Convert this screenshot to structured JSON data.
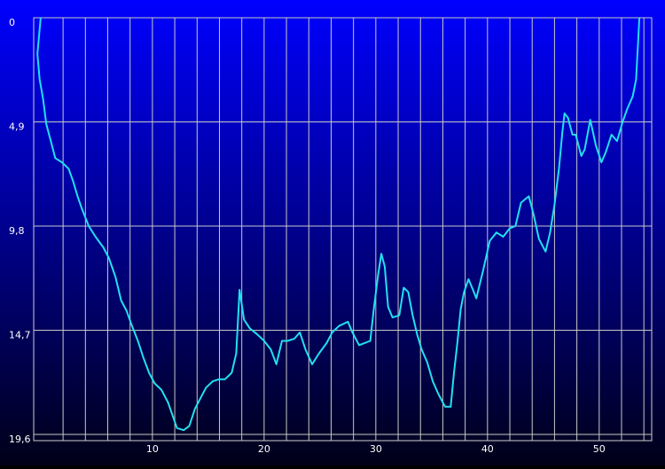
{
  "chart_data": {
    "type": "line",
    "x": [
      0,
      -0.3,
      -0.1,
      0.2,
      0.5,
      0.9,
      1.3,
      1.9,
      2.5,
      2.9,
      3.3,
      3.7,
      4.3,
      4.9,
      5.6,
      6.1,
      6.7,
      7.2,
      7.7,
      8.1,
      8.7,
      9.2,
      9.7,
      10.2,
      10.8,
      11.4,
      11.8,
      12.2,
      12.8,
      13.3,
      13.8,
      14.4,
      14.8,
      15.4,
      16.0,
      16.5,
      17.1,
      17.5,
      17.8,
      18.2,
      18.7,
      19.4,
      20.0,
      20.6,
      21.1,
      21.6,
      22.1,
      22.7,
      23.2,
      23.7,
      24.3,
      24.9,
      25.6,
      26.1,
      26.7,
      27.5,
      27.9,
      28.5,
      29.0,
      29.5,
      29.8,
      30.2,
      30.5,
      30.8,
      31.1,
      31.5,
      32.1,
      32.5,
      32.9,
      33.3,
      33.7,
      34.1,
      34.6,
      35.1,
      35.6,
      36.2,
      36.7,
      37.0,
      37.3,
      37.6,
      37.9,
      38.3,
      38.7,
      39.0,
      39.6,
      40.2,
      40.8,
      41.4,
      42.0,
      42.5,
      43.0,
      43.7,
      44.1,
      44.6,
      45.2,
      45.6,
      46.0,
      46.4,
      46.7,
      46.9,
      47.2,
      47.6,
      47.9,
      48.4,
      48.7,
      49.2,
      49.7,
      50.2,
      50.6,
      51.1,
      51.6,
      52.1,
      52.5,
      53.0,
      53.3,
      53.6
    ],
    "series": [
      {
        "color": "#22e0f0",
        "values": [
          0,
          1.7,
          2.9,
          3.8,
          5.0,
          5.8,
          6.6,
          6.8,
          7.1,
          7.7,
          8.4,
          9.0,
          9.8,
          10.3,
          10.8,
          11.3,
          12.2,
          13.3,
          13.8,
          14.4,
          15.2,
          16.0,
          16.7,
          17.2,
          17.5,
          18.1,
          18.7,
          19.3,
          19.4,
          19.2,
          18.4,
          17.8,
          17.4,
          17.1,
          17.0,
          17.0,
          16.7,
          15.8,
          12.8,
          14.2,
          14.6,
          14.9,
          15.2,
          15.6,
          16.3,
          15.2,
          15.2,
          15.1,
          14.8,
          15.6,
          16.3,
          15.8,
          15.3,
          14.8,
          14.5,
          14.3,
          14.8,
          15.4,
          15.3,
          15.2,
          13.8,
          12.1,
          11.1,
          11.7,
          13.6,
          14.1,
          14.0,
          12.7,
          12.9,
          14.0,
          14.9,
          15.6,
          16.2,
          17.1,
          17.7,
          18.3,
          18.3,
          16.7,
          15.3,
          13.7,
          12.9,
          12.3,
          12.8,
          13.2,
          11.9,
          10.5,
          10.1,
          10.3,
          9.9,
          9.8,
          8.7,
          8.4,
          9.2,
          10.4,
          11.0,
          10.1,
          8.8,
          7.1,
          5.4,
          4.5,
          4.7,
          5.5,
          5.5,
          6.5,
          6.2,
          4.8,
          6.0,
          6.8,
          6.3,
          5.5,
          5.8,
          4.9,
          4.3,
          3.7,
          2.9,
          0
        ]
      }
    ],
    "xlim": [
      -0.63,
      54.7
    ],
    "ylim": [
      0,
      19.6
    ],
    "y_inverted": true,
    "xticks": [
      10,
      20,
      30,
      40,
      50
    ],
    "xgrid": [
      2,
      4,
      6,
      8,
      10,
      12,
      14,
      16,
      18,
      20,
      22,
      24,
      26,
      28,
      30,
      32,
      34,
      36,
      38,
      40,
      42,
      44,
      46,
      48,
      50,
      52,
      54
    ],
    "yticks": [
      0,
      {
        "value": 4.9,
        "label": "4,9"
      },
      {
        "value": 9.8,
        "label": "9,8"
      },
      {
        "value": 14.7,
        "label": "14,7"
      },
      {
        "value": 19.6,
        "label": "19,6"
      }
    ],
    "grid": true
  }
}
